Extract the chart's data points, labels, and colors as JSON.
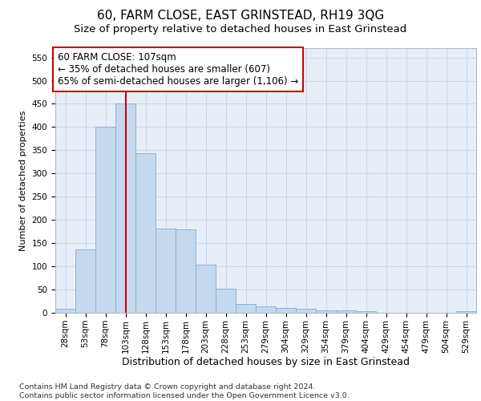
{
  "title": "60, FARM CLOSE, EAST GRINSTEAD, RH19 3QG",
  "subtitle": "Size of property relative to detached houses in East Grinstead",
  "xlabel": "Distribution of detached houses by size in East Grinstead",
  "ylabel": "Number of detached properties",
  "categories": [
    "28sqm",
    "53sqm",
    "78sqm",
    "103sqm",
    "128sqm",
    "153sqm",
    "178sqm",
    "203sqm",
    "228sqm",
    "253sqm",
    "279sqm",
    "304sqm",
    "329sqm",
    "354sqm",
    "379sqm",
    "404sqm",
    "429sqm",
    "454sqm",
    "479sqm",
    "504sqm",
    "529sqm"
  ],
  "values": [
    8,
    137,
    401,
    450,
    343,
    181,
    180,
    104,
    51,
    19,
    14,
    10,
    8,
    5,
    5,
    4,
    0,
    0,
    0,
    0,
    4
  ],
  "bar_color": "#c5d9ee",
  "bar_edge_color": "#7aaed6",
  "vline_color": "#cc0000",
  "annotation_text": "60 FARM CLOSE: 107sqm\n← 35% of detached houses are smaller (607)\n65% of semi-detached houses are larger (1,106) →",
  "annotation_box_facecolor": "#ffffff",
  "annotation_box_edgecolor": "#cc0000",
  "ylim": [
    0,
    570
  ],
  "yticks": [
    0,
    50,
    100,
    150,
    200,
    250,
    300,
    350,
    400,
    450,
    500,
    550
  ],
  "grid_color": "#c8d8ec",
  "background_color": "#e8eef8",
  "footer_text": "Contains HM Land Registry data © Crown copyright and database right 2024.\nContains public sector information licensed under the Open Government Licence v3.0.",
  "title_fontsize": 11,
  "subtitle_fontsize": 9.5,
  "xlabel_fontsize": 9,
  "ylabel_fontsize": 8,
  "tick_fontsize": 7.5,
  "annotation_fontsize": 8.5,
  "footer_fontsize": 6.8
}
